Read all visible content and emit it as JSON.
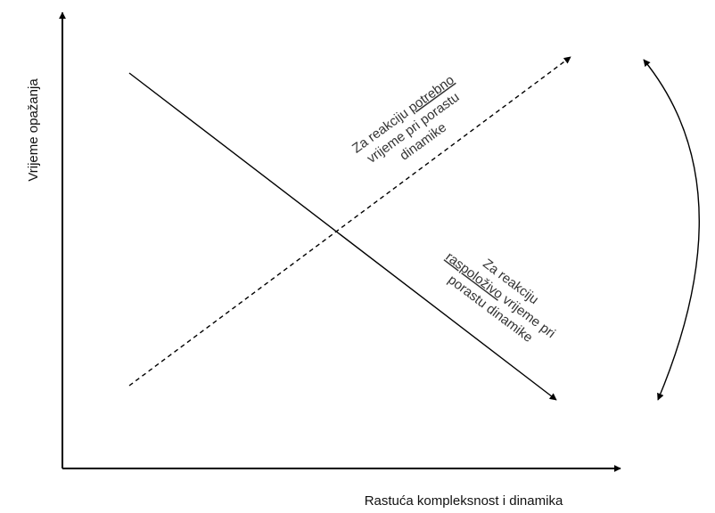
{
  "axes": {
    "y_label": "Vrijeme opažanja",
    "x_label": "Rastuća kompleksnost i dinamika"
  },
  "needed_time_label": {
    "line1_prefix": "Za reakciju ",
    "line1_emphasis": "potrebno",
    "line2": "vrijeme pri porastu",
    "line3": "dinamike"
  },
  "available_time_label": {
    "line1": "Za reakciju",
    "line2_emphasis": "raspoloživo",
    "line2_suffix": " vrijeme pri",
    "line3": "porastu dinamike"
  },
  "colors": {
    "stroke": "#000000",
    "text": "#333333"
  }
}
